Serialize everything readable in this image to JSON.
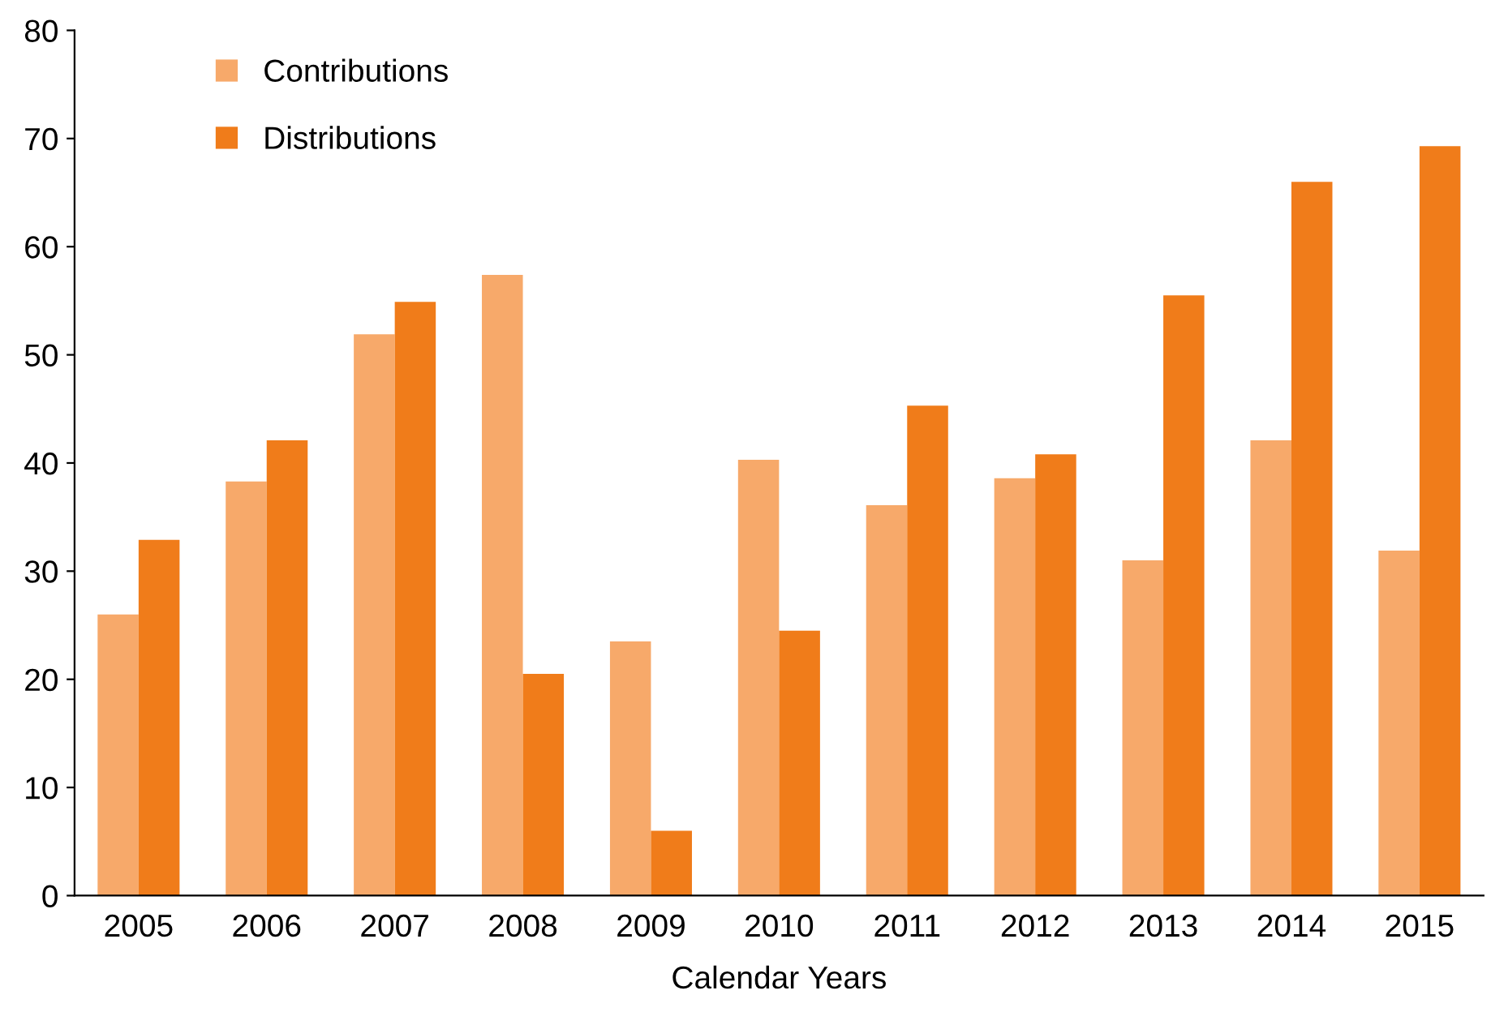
{
  "chart_data": {
    "type": "bar",
    "xlabel": "Calendar Years",
    "categories": [
      "2005",
      "2006",
      "2007",
      "2008",
      "2009",
      "2010",
      "2011",
      "2012",
      "2013",
      "2014",
      "2015"
    ],
    "series": [
      {
        "name": "Contributions",
        "color": "#f7a96a",
        "values": [
          26.0,
          38.3,
          51.9,
          57.4,
          23.5,
          40.3,
          36.1,
          38.6,
          31.0,
          42.1,
          31.9
        ]
      },
      {
        "name": "Distributions",
        "color": "#f07c1a",
        "values": [
          32.9,
          42.1,
          54.9,
          20.5,
          6.0,
          24.5,
          45.3,
          40.8,
          55.5,
          66.0,
          69.3
        ]
      }
    ],
    "ylim": [
      0,
      80
    ],
    "yticks": [
      0,
      10,
      20,
      30,
      40,
      50,
      60,
      70,
      80
    ],
    "grid": false,
    "legend": "top left"
  }
}
